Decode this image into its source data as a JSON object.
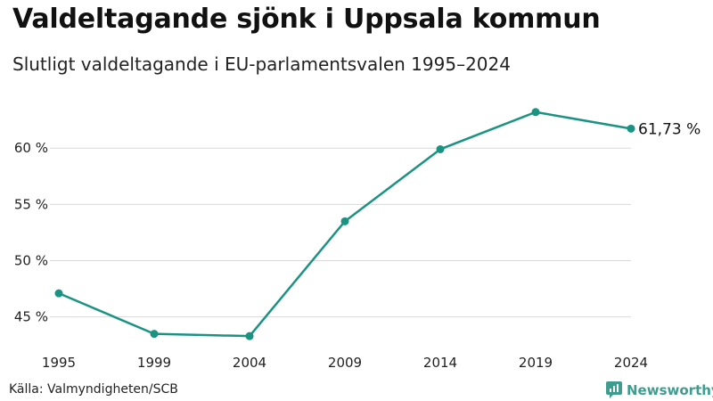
{
  "title": "Valdeltagande sjönk i Uppsala kommun",
  "subtitle": "Slutligt valdeltagande i EU-parlamentsvalen 1995–2024",
  "source": "Källa: Valmyndigheten/SCB",
  "brand": {
    "name": "Newsworthy",
    "color": "#3f9d8f",
    "icon": "newsworthy-logo-icon"
  },
  "chart_data": {
    "type": "line",
    "title": "Valdeltagande sjönk i Uppsala kommun",
    "subtitle": "Slutligt valdeltagande i EU-parlamentsvalen 1995–2024",
    "xlabel": "",
    "ylabel": "",
    "x": [
      "1995",
      "1999",
      "2004",
      "2009",
      "2014",
      "2019",
      "2024"
    ],
    "series": [
      {
        "name": "Valdeltagande",
        "values": [
          47.1,
          43.5,
          43.3,
          53.5,
          59.9,
          63.2,
          61.73
        ],
        "color": "#1a9383"
      }
    ],
    "ylim": [
      42.6,
      65.4
    ],
    "yticks": [
      {
        "value": 45,
        "label": "45 %"
      },
      {
        "value": 50,
        "label": "50 %"
      },
      {
        "value": 55,
        "label": "55 %"
      },
      {
        "value": 60,
        "label": "60 %"
      }
    ],
    "end_label": "61,73 %",
    "grid": true,
    "legend": "none"
  }
}
